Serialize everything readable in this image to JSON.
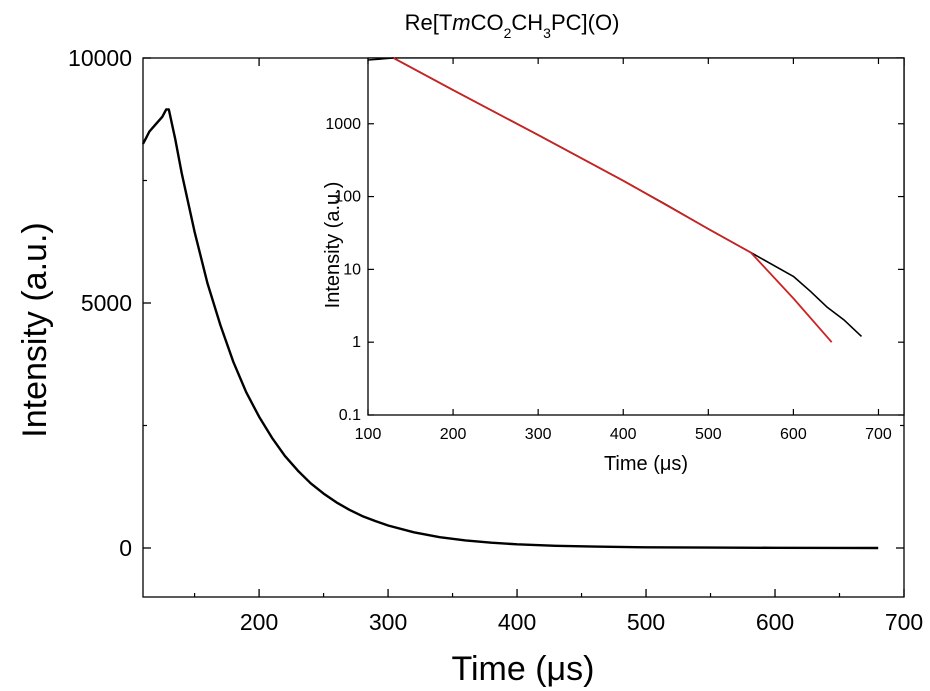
{
  "chart_data": [
    {
      "type": "line",
      "title": "Re[TmCO2CH3PC](O)",
      "title_parts": {
        "pre": "Re[T",
        "italic": "m",
        "co": "CO",
        "sub1": "2",
        "ch": "CH",
        "sub2": "3",
        "post": "PC](O)"
      },
      "xlabel": "Time (μs)",
      "ylabel": "Intensity (a.u.)",
      "xlim": [
        110,
        700
      ],
      "ylim": [
        -1000,
        10000
      ],
      "xticks": [
        200,
        300,
        400,
        500,
        600,
        700
      ],
      "yticks": [
        0,
        5000,
        10000
      ],
      "xtick_labels": [
        "200",
        "300",
        "400",
        "500",
        "600",
        "700"
      ],
      "ytick_labels": [
        "0",
        "5000",
        "10000"
      ],
      "series": [
        {
          "color": "#000000",
          "x": [
            110,
            112,
            115,
            120,
            125,
            128,
            130,
            135,
            140,
            150,
            160,
            170,
            180,
            190,
            200,
            210,
            220,
            230,
            240,
            250,
            260,
            270,
            280,
            290,
            300,
            320,
            340,
            360,
            380,
            400,
            430,
            460,
            500,
            550,
            600,
            650,
            680
          ],
          "y": [
            8250,
            8350,
            8500,
            8650,
            8800,
            8950,
            8950,
            8350,
            7650,
            6450,
            5400,
            4550,
            3800,
            3180,
            2680,
            2250,
            1880,
            1580,
            1320,
            1110,
            930,
            780,
            650,
            550,
            460,
            320,
            220,
            155,
            108,
            75,
            45,
            28,
            15,
            8,
            4,
            2,
            1
          ]
        }
      ]
    },
    {
      "type": "line",
      "title": "",
      "xlabel": "Time (μs)",
      "ylabel": "Intensity (a.u.)",
      "xlim": [
        100,
        730
      ],
      "ylim": [
        0.1,
        8000
      ],
      "yscale": "log",
      "xticks": [
        100,
        200,
        300,
        400,
        500,
        600,
        700
      ],
      "yticks": [
        0.1,
        1,
        10,
        100,
        1000
      ],
      "xtick_labels": [
        "100",
        "200",
        "300",
        "400",
        "500",
        "600",
        "700"
      ],
      "ytick_labels": [
        "0.1",
        "1",
        "10",
        "100",
        "1000"
      ],
      "series": [
        {
          "color": "#000000",
          "x": [
            100,
            130,
            200,
            300,
            400,
            450,
            500,
            550,
            600,
            620,
            640,
            660,
            680
          ],
          "y": [
            7500,
            8000,
            2900,
            700,
            165,
            78,
            36,
            17,
            8,
            5,
            3,
            2,
            1.2
          ]
        },
        {
          "color": "#cc2222",
          "x": [
            130,
            200,
            300,
            400,
            500,
            550,
            600,
            645
          ],
          "y": [
            8000,
            2900,
            700,
            165,
            36,
            17,
            4,
            1
          ]
        }
      ]
    }
  ]
}
